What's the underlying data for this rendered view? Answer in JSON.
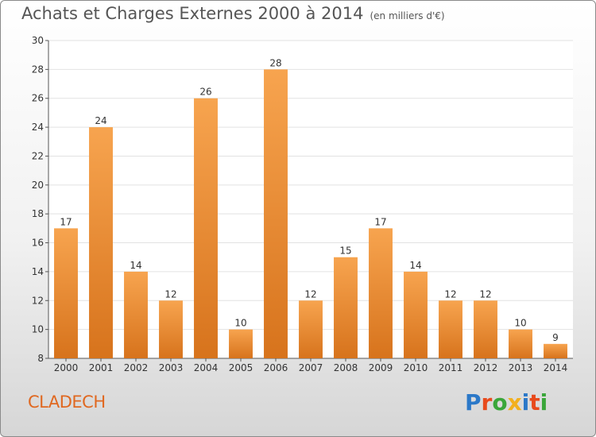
{
  "header": {
    "title": "Achats et Charges Externes 2000 à 2014",
    "subtitle": "(en milliers d'€)"
  },
  "footer": {
    "commune": "CLADECH",
    "logo_text": "Proxiti",
    "logo_colors": [
      "#2b78c8",
      "#e84a1c",
      "#3aa63a",
      "#f2b01e",
      "#2b78c8",
      "#e84a1c",
      "#3aa63a"
    ]
  },
  "chart_data": {
    "type": "bar",
    "title": "Achats et Charges Externes 2000 à 2014",
    "subtitle": "(en milliers d'€)",
    "categories": [
      "2000",
      "2001",
      "2002",
      "2003",
      "2004",
      "2005",
      "2006",
      "2007",
      "2008",
      "2009",
      "2010",
      "2011",
      "2012",
      "2013",
      "2014"
    ],
    "values": [
      17,
      24,
      14,
      12,
      26,
      10,
      28,
      12,
      15,
      17,
      14,
      12,
      12,
      10,
      9
    ],
    "data_labels": [
      "17",
      "24",
      "14",
      "12",
      "26",
      "10",
      "28",
      "12",
      "15",
      "17",
      "14",
      "12",
      "12",
      "10",
      "9"
    ],
    "ylim": [
      8,
      30
    ],
    "yticks": [
      8,
      10,
      12,
      14,
      16,
      18,
      20,
      22,
      24,
      26,
      28,
      30
    ],
    "grid": true,
    "bar_color_top": "#f7a44f",
    "bar_color_bottom": "#d7731c"
  }
}
